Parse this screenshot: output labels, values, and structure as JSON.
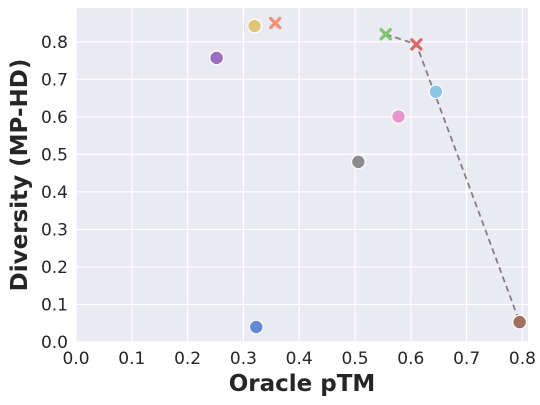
{
  "chart_data": {
    "type": "scatter",
    "title": "",
    "xlabel": "Oracle pTM",
    "ylabel": "Diversity (MP-HD)",
    "xlim": [
      0.0,
      0.81
    ],
    "ylim": [
      0.0,
      0.89
    ],
    "x_ticks": [
      "0.0",
      "0.1",
      "0.2",
      "0.3",
      "0.4",
      "0.5",
      "0.6",
      "0.7",
      "0.8"
    ],
    "y_ticks": [
      "0.0",
      "0.1",
      "0.2",
      "0.3",
      "0.4",
      "0.5",
      "0.6",
      "0.7",
      "0.8"
    ],
    "grid": true,
    "background": "#eaeaf2",
    "points": [
      {
        "x": 0.32,
        "y": 0.842,
        "marker": "circle",
        "color": "#dec57a"
      },
      {
        "x": 0.357,
        "y": 0.85,
        "marker": "x",
        "color": "#f09070"
      },
      {
        "x": 0.252,
        "y": 0.757,
        "marker": "circle",
        "color": "#9a6ec0"
      },
      {
        "x": 0.555,
        "y": 0.82,
        "marker": "x",
        "color": "#7cc870"
      },
      {
        "x": 0.61,
        "y": 0.793,
        "marker": "x",
        "color": "#d96a6a"
      },
      {
        "x": 0.645,
        "y": 0.667,
        "marker": "circle",
        "color": "#8ec6e6"
      },
      {
        "x": 0.578,
        "y": 0.601,
        "marker": "circle",
        "color": "#e696cc"
      },
      {
        "x": 0.506,
        "y": 0.48,
        "marker": "circle",
        "color": "#8c8c8c"
      },
      {
        "x": 0.323,
        "y": 0.04,
        "marker": "circle",
        "color": "#6688d8"
      },
      {
        "x": 0.795,
        "y": 0.053,
        "marker": "circle",
        "color": "#a0705e"
      }
    ],
    "pareto_line": {
      "style": "dashed",
      "color": "#808080",
      "x": [
        0.555,
        0.61,
        0.795
      ],
      "y": [
        0.82,
        0.793,
        0.053
      ]
    }
  }
}
